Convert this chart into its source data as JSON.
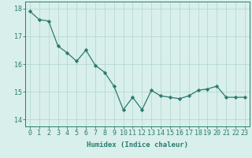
{
  "x": [
    0,
    1,
    2,
    3,
    4,
    5,
    6,
    7,
    8,
    9,
    10,
    11,
    12,
    13,
    14,
    15,
    16,
    17,
    18,
    19,
    20,
    21,
    22,
    23
  ],
  "y": [
    17.9,
    17.6,
    17.55,
    16.65,
    16.4,
    16.1,
    16.5,
    15.95,
    15.7,
    15.2,
    14.35,
    14.8,
    14.35,
    15.05,
    14.85,
    14.8,
    14.75,
    14.85,
    15.05,
    15.1,
    15.2,
    14.8,
    14.8,
    14.8
  ],
  "line_color": "#2d7a6e",
  "marker": "D",
  "markersize": 2.2,
  "bg_color": "#d8efeb",
  "grid_color": "#b0d4ce",
  "axis_color": "#2d7a6e",
  "xlabel": "Humidex (Indice chaleur)",
  "ylim": [
    13.75,
    18.25
  ],
  "xlim": [
    -0.5,
    23.5
  ],
  "yticks": [
    14,
    15,
    16,
    17,
    18
  ],
  "xticks": [
    0,
    1,
    2,
    3,
    4,
    5,
    6,
    7,
    8,
    9,
    10,
    11,
    12,
    13,
    14,
    15,
    16,
    17,
    18,
    19,
    20,
    21,
    22,
    23
  ],
  "xlabel_fontsize": 6.5,
  "tick_fontsize": 6.0,
  "linewidth": 0.9
}
